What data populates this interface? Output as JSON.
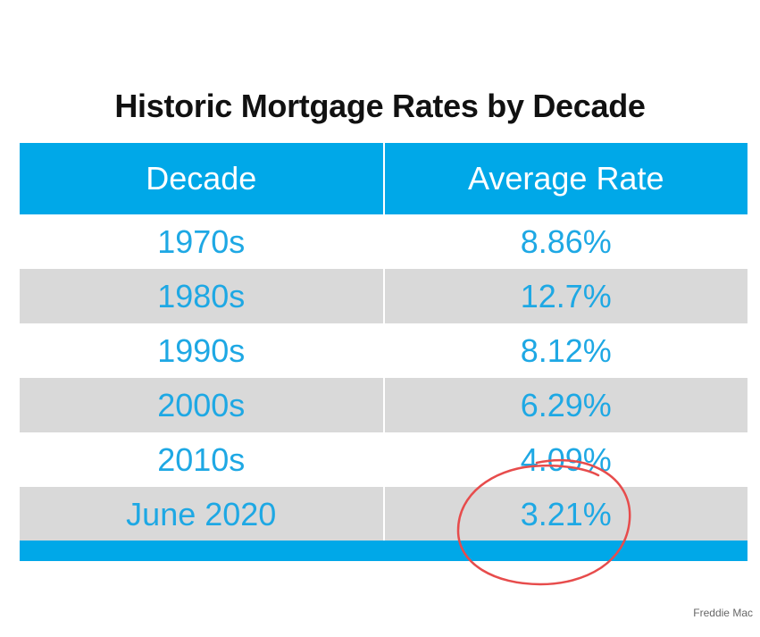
{
  "chart_data": {
    "type": "table",
    "title": "Historic Mortgage Rates by Decade",
    "columns": [
      "Decade",
      "Average Rate"
    ],
    "rows": [
      {
        "decade": "1970s",
        "rate": "8.86%"
      },
      {
        "decade": "1980s",
        "rate": "12.7%"
      },
      {
        "decade": "1990s",
        "rate": "8.12%"
      },
      {
        "decade": "2000s",
        "rate": "6.29%"
      },
      {
        "decade": "2010s",
        "rate": "4.09%"
      },
      {
        "decade": "June 2020",
        "rate": "3.21%"
      }
    ],
    "values": [
      8.86,
      12.7,
      8.12,
      6.29,
      4.09,
      3.21
    ],
    "highlighted_row": "June 2020"
  },
  "source": "Freddie Mac",
  "colors": {
    "header_bg": "#00a8e8",
    "text_accent": "#1ea8e4",
    "alt_row_bg": "#d9d9d9",
    "highlight_circle": "#e74c4c"
  }
}
